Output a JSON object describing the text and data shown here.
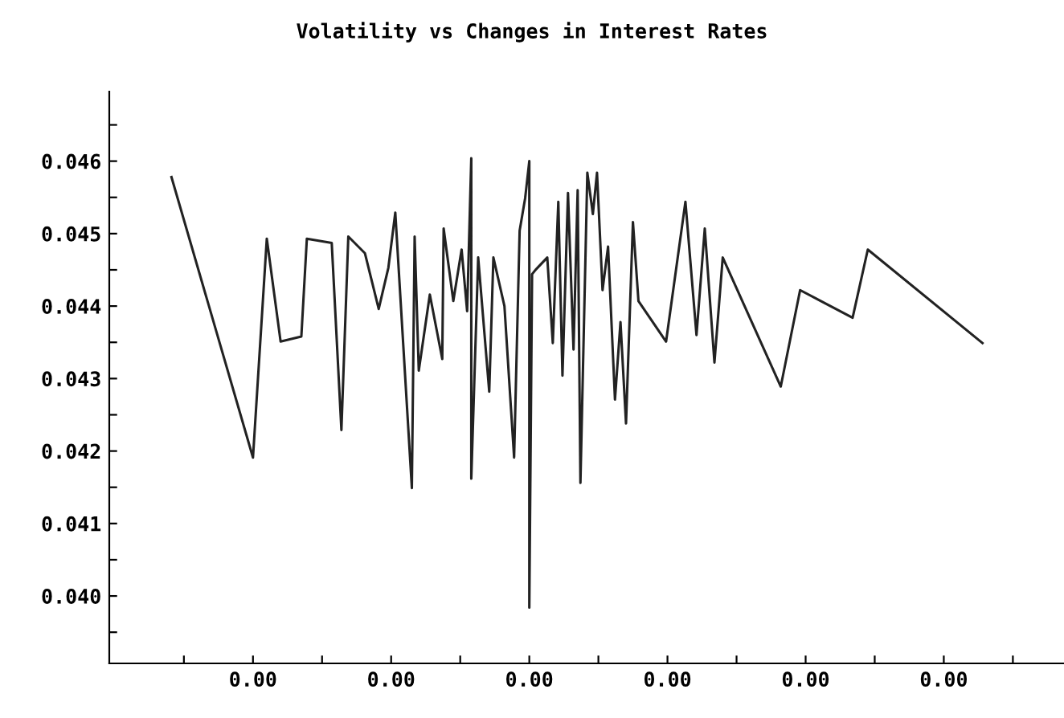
{
  "chart_data": {
    "type": "line",
    "title": "Volatility vs Changes in Interest Rates",
    "x": [
      -0.00259,
      -0.002,
      -0.0019,
      -0.0018,
      -0.00165,
      -0.00161,
      -0.00143,
      -0.00136,
      -0.00131,
      -0.00119,
      -0.00109,
      -0.00102,
      -0.00097,
      -0.00085,
      -0.00083,
      -0.0008,
      -0.00072,
      -0.00063,
      -0.00062,
      -0.00055,
      -0.00049,
      -0.00045,
      -0.00042,
      -0.00042,
      -0.00037,
      -0.00029,
      -0.00026,
      -0.00018,
      -0.00011,
      -7e-05,
      -3e-05,
      0.0,
      0.0,
      2e-05,
      5e-05,
      0.00013,
      0.00017,
      0.00021,
      0.00024,
      0.00028,
      0.00032,
      0.00035,
      0.00037,
      0.00042,
      0.00046,
      0.00049,
      0.00053,
      0.00057,
      0.00062,
      0.00066,
      0.0007,
      0.00075,
      0.00079,
      0.00099,
      0.00113,
      0.00121,
      0.00127,
      0.00134,
      0.0014,
      0.00182,
      0.00196,
      0.00234,
      0.00245,
      0.00328
    ],
    "series": [
      {
        "color": "#222222",
        "values": [
          0.04578,
          0.04191,
          0.04493,
          0.04351,
          0.04358,
          0.04493,
          0.04487,
          0.04229,
          0.04496,
          0.04473,
          0.04396,
          0.04453,
          0.04529,
          0.04149,
          0.04496,
          0.04311,
          0.04416,
          0.04327,
          0.04507,
          0.04407,
          0.04478,
          0.04393,
          0.04604,
          0.04162,
          0.04467,
          0.04282,
          0.04467,
          0.044,
          0.04191,
          0.04504,
          0.04549,
          0.046,
          0.03984,
          0.04444,
          0.04451,
          0.04467,
          0.04349,
          0.04544,
          0.04304,
          0.04556,
          0.0434,
          0.0456,
          0.04156,
          0.04584,
          0.04527,
          0.04584,
          0.04422,
          0.04482,
          0.04271,
          0.04378,
          0.04238,
          0.04516,
          0.04407,
          0.04351,
          0.04544,
          0.0436,
          0.04507,
          0.04322,
          0.04467,
          0.04289,
          0.04422,
          0.04384,
          0.04478,
          0.04349
        ]
      }
    ],
    "xlim": [
      -0.00304,
      0.00387
    ],
    "ylim": [
      0.03907,
      0.04696
    ],
    "xticks": [
      {
        "value": -0.0025,
        "label": null
      },
      {
        "value": -0.002,
        "label": "0.00"
      },
      {
        "value": -0.0015,
        "label": null
      },
      {
        "value": -0.001,
        "label": "0.00"
      },
      {
        "value": -0.0005,
        "label": null
      },
      {
        "value": 0.0,
        "label": "0.00"
      },
      {
        "value": 0.0005,
        "label": null
      },
      {
        "value": 0.001,
        "label": "0.00"
      },
      {
        "value": 0.0015,
        "label": null
      },
      {
        "value": 0.002,
        "label": "0.00"
      },
      {
        "value": 0.0025,
        "label": null
      },
      {
        "value": 0.003,
        "label": "0.00"
      },
      {
        "value": 0.0035,
        "label": null
      }
    ],
    "yticks": [
      {
        "value": 0.0395,
        "label": null
      },
      {
        "value": 0.04,
        "label": "0.040"
      },
      {
        "value": 0.0405,
        "label": null
      },
      {
        "value": 0.041,
        "label": "0.041"
      },
      {
        "value": 0.0415,
        "label": null
      },
      {
        "value": 0.042,
        "label": "0.042"
      },
      {
        "value": 0.0425,
        "label": null
      },
      {
        "value": 0.043,
        "label": "0.043"
      },
      {
        "value": 0.0435,
        "label": null
      },
      {
        "value": 0.044,
        "label": "0.044"
      },
      {
        "value": 0.0445,
        "label": null
      },
      {
        "value": 0.045,
        "label": "0.045"
      },
      {
        "value": 0.0455,
        "label": null
      },
      {
        "value": 0.046,
        "label": "0.046"
      },
      {
        "value": 0.0465,
        "label": null
      }
    ],
    "grid": false,
    "marker": "none",
    "line_style": "solid"
  }
}
